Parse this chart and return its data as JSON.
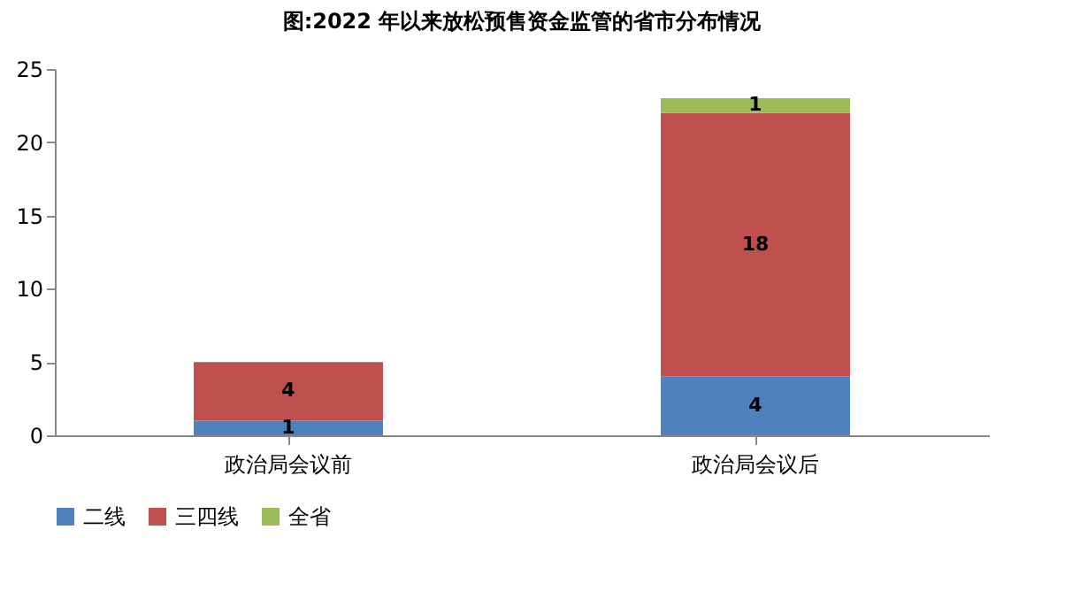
{
  "chart_data": {
    "type": "bar",
    "title": "图:2022 年以来放松预售资金监管的省市分布情况",
    "categories": [
      "政治局会议前",
      "政治局会议后"
    ],
    "stacked": true,
    "series": [
      {
        "name": "二线",
        "color": "#4f81bd",
        "values": [
          1,
          4
        ]
      },
      {
        "name": "三四线",
        "color": "#c0504d",
        "values": [
          4,
          18
        ]
      },
      {
        "name": "全省",
        "color": "#9bbb59",
        "values": [
          null,
          1
        ]
      }
    ],
    "ylim": [
      0,
      25
    ],
    "yticks": [
      0,
      5,
      10,
      15,
      20,
      25
    ],
    "grid": false,
    "legend": "bottom",
    "data_labels": true
  }
}
